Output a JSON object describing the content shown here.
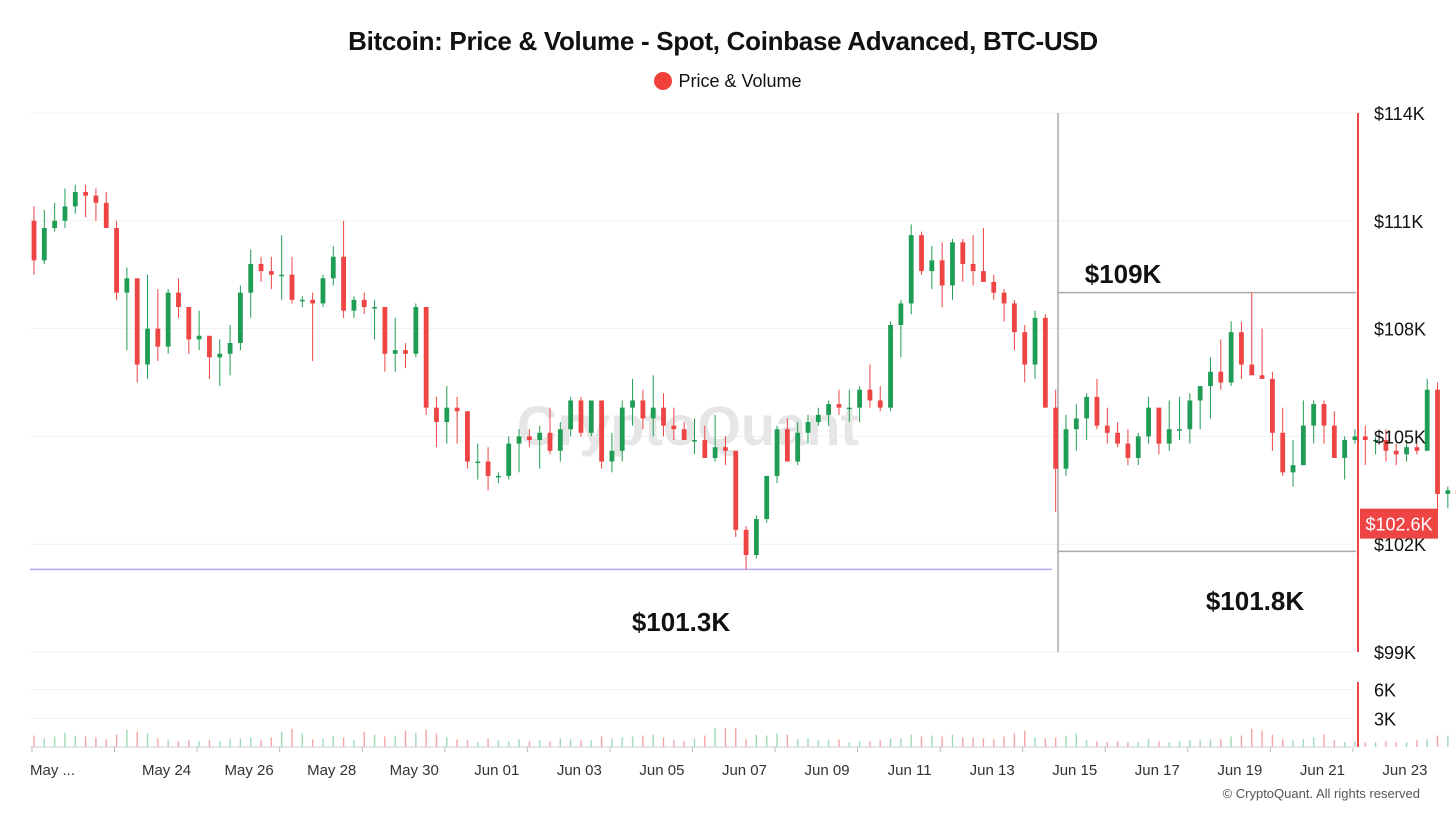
{
  "chart_data": {
    "title": "Bitcoin: Price & Volume - Spot, Coinbase Advanced, BTC-USD",
    "type": "candlestick",
    "legend": [
      {
        "label": "Price & Volume",
        "color": "#f0403a"
      }
    ],
    "legend_position": "top-center",
    "watermark": "CryptoQuant",
    "colors": {
      "up": "#1f9d55",
      "down": "#ef4444",
      "up_volume": "#9ed9b5",
      "down_volume": "#f4a3a3",
      "axis_accent": "#ef4444",
      "crosshair": "#aaaaaa",
      "support_line": "#b4a8f0"
    },
    "x_axis": {
      "ticks": [
        "May ...",
        "May 24",
        "May 26",
        "May 28",
        "May 30",
        "Jun 01",
        "Jun 03",
        "Jun 05",
        "Jun 07",
        "Jun 09",
        "Jun 11",
        "Jun 13",
        "Jun 15",
        "Jun 17",
        "Jun 19",
        "Jun 21",
        "Jun 23"
      ],
      "tick_hours": [
        0,
        48,
        96,
        144,
        192,
        240,
        288,
        336,
        384,
        432,
        480,
        528,
        576,
        624,
        672,
        720,
        768
      ]
    },
    "price_axis": {
      "ylim": [
        99000,
        114000
      ],
      "ticks": [
        99000,
        102000,
        105000,
        108000,
        111000,
        114000
      ],
      "tick_labels": [
        "$99K",
        "$102K",
        "$105K",
        "$108K",
        "$111K",
        "$114K"
      ],
      "current_price_label": "$102.6K",
      "current_price": 102600
    },
    "volume_axis": {
      "ylim": [
        0,
        6800
      ],
      "ticks": [
        3000,
        6000
      ],
      "tick_labels": [
        "3K",
        "6K"
      ]
    },
    "grid": true,
    "annotations": [
      {
        "text": "$109K",
        "value": 109000
      },
      {
        "text": "$101.3K",
        "value": 101300
      },
      {
        "text": "$101.8K",
        "value": 101800
      }
    ],
    "candle_interval_hours": 6,
    "candles": [
      [
        111000,
        111400,
        109500,
        109900
      ],
      [
        109900,
        111300,
        109800,
        110800
      ],
      [
        110800,
        111500,
        110700,
        111000
      ],
      [
        111000,
        111900,
        110800,
        111400
      ],
      [
        111400,
        112000,
        111200,
        111800
      ],
      [
        111800,
        112000,
        111100,
        111700
      ],
      [
        111700,
        111900,
        111000,
        111500
      ],
      [
        111500,
        111800,
        110800,
        110800
      ],
      [
        110800,
        111000,
        108800,
        109000
      ],
      [
        109000,
        109700,
        107400,
        109400
      ],
      [
        109400,
        109400,
        106500,
        107000
      ],
      [
        107000,
        109500,
        106600,
        108000
      ],
      [
        108000,
        109100,
        107100,
        107500
      ],
      [
        107500,
        109100,
        107300,
        109000
      ],
      [
        109000,
        109400,
        108300,
        108600
      ],
      [
        108600,
        108600,
        107300,
        107700
      ],
      [
        107700,
        108500,
        107400,
        107800
      ],
      [
        107800,
        107800,
        106600,
        107200
      ],
      [
        107200,
        107700,
        106400,
        107300
      ],
      [
        107300,
        108100,
        106700,
        107600
      ],
      [
        107600,
        109200,
        107400,
        109000
      ],
      [
        109000,
        110200,
        108300,
        109800
      ],
      [
        109800,
        110000,
        109300,
        109600
      ],
      [
        109600,
        110000,
        109100,
        109500
      ],
      [
        109500,
        110600,
        108800,
        109500
      ],
      [
        109500,
        110000,
        108700,
        108800
      ],
      [
        108800,
        108900,
        108600,
        108800
      ],
      [
        108800,
        109000,
        107100,
        108700
      ],
      [
        108700,
        109500,
        108600,
        109400
      ],
      [
        109400,
        110300,
        109200,
        110000
      ],
      [
        110000,
        111000,
        108300,
        108500
      ],
      [
        108500,
        108900,
        108300,
        108800
      ],
      [
        108800,
        109000,
        108400,
        108600
      ],
      [
        108600,
        108800,
        107700,
        108600
      ],
      [
        108600,
        108600,
        106800,
        107300
      ],
      [
        107300,
        108300,
        106800,
        107400
      ],
      [
        107400,
        107600,
        106900,
        107300
      ],
      [
        107300,
        108700,
        107200,
        108600
      ],
      [
        108600,
        108600,
        105600,
        105800
      ],
      [
        105800,
        106100,
        104700,
        105400
      ],
      [
        105400,
        106400,
        104800,
        105800
      ],
      [
        105800,
        106100,
        104800,
        105700
      ],
      [
        105700,
        105700,
        104100,
        104300
      ],
      [
        104300,
        104800,
        103800,
        104300
      ],
      [
        104300,
        104700,
        103500,
        103900
      ],
      [
        103900,
        104000,
        103700,
        103900
      ],
      [
        103900,
        105000,
        103800,
        104800
      ],
      [
        104800,
        105200,
        104000,
        105000
      ],
      [
        105000,
        105200,
        104700,
        104900
      ],
      [
        104900,
        105300,
        104100,
        105100
      ],
      [
        105100,
        105800,
        104500,
        104600
      ],
      [
        104600,
        105400,
        104300,
        105200
      ],
      [
        105200,
        106100,
        105000,
        106000
      ],
      [
        106000,
        106100,
        105000,
        105100
      ],
      [
        105100,
        106000,
        105000,
        106000
      ],
      [
        106000,
        106000,
        104100,
        104300
      ],
      [
        104300,
        105100,
        104000,
        104600
      ],
      [
        104600,
        106000,
        104300,
        105800
      ],
      [
        105800,
        106600,
        105300,
        106000
      ],
      [
        106000,
        106300,
        105200,
        105500
      ],
      [
        105500,
        106700,
        105000,
        105800
      ],
      [
        105800,
        106200,
        105000,
        105300
      ],
      [
        105300,
        105800,
        104900,
        105200
      ],
      [
        105200,
        105400,
        104900,
        104900
      ],
      [
        104900,
        105500,
        104500,
        104900
      ],
      [
        104900,
        105300,
        104400,
        104400
      ],
      [
        104400,
        105600,
        104300,
        104700
      ],
      [
        104700,
        105000,
        104200,
        104600
      ],
      [
        104600,
        104600,
        102200,
        102400
      ],
      [
        102400,
        102500,
        101300,
        101700
      ],
      [
        101700,
        102800,
        101600,
        102700
      ],
      [
        102700,
        103900,
        102600,
        103900
      ],
      [
        103900,
        105300,
        103700,
        105200
      ],
      [
        105200,
        105500,
        104300,
        104300
      ],
      [
        104300,
        105400,
        104200,
        105100
      ],
      [
        105100,
        105600,
        104800,
        105400
      ],
      [
        105400,
        105800,
        105300,
        105600
      ],
      [
        105600,
        106000,
        105300,
        105900
      ],
      [
        105900,
        106300,
        105600,
        105800
      ],
      [
        105800,
        106300,
        105400,
        105800
      ],
      [
        105800,
        106400,
        105400,
        106300
      ],
      [
        106300,
        107000,
        105800,
        106000
      ],
      [
        106000,
        106400,
        105700,
        105800
      ],
      [
        105800,
        108200,
        105700,
        108100
      ],
      [
        108100,
        108800,
        107200,
        108700
      ],
      [
        108700,
        110900,
        108400,
        110600
      ],
      [
        110600,
        110700,
        109500,
        109600
      ],
      [
        109600,
        110300,
        109100,
        109900
      ],
      [
        109900,
        110400,
        108600,
        109200
      ],
      [
        109200,
        110500,
        108800,
        110400
      ],
      [
        110400,
        110500,
        109300,
        109800
      ],
      [
        109800,
        110600,
        109200,
        109600
      ],
      [
        109600,
        110800,
        109300,
        109300
      ],
      [
        109300,
        109500,
        108800,
        109000
      ],
      [
        109000,
        109100,
        108200,
        108700
      ],
      [
        108700,
        108800,
        107400,
        107900
      ],
      [
        107900,
        108100,
        106500,
        107000
      ],
      [
        107000,
        108500,
        106600,
        108300
      ],
      [
        108300,
        108400,
        105800,
        105800
      ],
      [
        105800,
        106300,
        102900,
        104100
      ],
      [
        104100,
        105600,
        103900,
        105200
      ],
      [
        105200,
        105900,
        104600,
        105500
      ],
      [
        105500,
        106200,
        104900,
        106100
      ],
      [
        106100,
        106600,
        105200,
        105300
      ],
      [
        105300,
        105800,
        104800,
        105100
      ],
      [
        105100,
        105400,
        104700,
        104800
      ],
      [
        104800,
        105200,
        104200,
        104400
      ],
      [
        104400,
        105100,
        104200,
        105000
      ],
      [
        105000,
        106100,
        104800,
        105800
      ],
      [
        105800,
        105800,
        104500,
        104800
      ],
      [
        104800,
        106000,
        104600,
        105200
      ],
      [
        105200,
        106100,
        104900,
        105200
      ],
      [
        105200,
        106200,
        104800,
        106000
      ],
      [
        106000,
        106300,
        105200,
        106400
      ],
      [
        106400,
        107200,
        105500,
        106800
      ],
      [
        106800,
        107700,
        106300,
        106500
      ],
      [
        106500,
        108200,
        106400,
        107900
      ],
      [
        107900,
        108200,
        106600,
        107000
      ],
      [
        107000,
        109000,
        106800,
        106700
      ],
      [
        106700,
        108000,
        106600,
        106600
      ],
      [
        106600,
        106800,
        104600,
        105100
      ],
      [
        105100,
        105800,
        103900,
        104000
      ],
      [
        104000,
        104900,
        103600,
        104200
      ],
      [
        104200,
        106000,
        104200,
        105300
      ],
      [
        105300,
        106000,
        104800,
        105900
      ],
      [
        105900,
        106000,
        104800,
        105300
      ],
      [
        105300,
        105700,
        104500,
        104400
      ],
      [
        104400,
        105000,
        103800,
        104900
      ],
      [
        104900,
        105200,
        104800,
        105000
      ],
      [
        105000,
        105300,
        104200,
        104900
      ],
      [
        104900,
        105000,
        104500,
        104900
      ],
      [
        104900,
        105200,
        104300,
        104600
      ],
      [
        104600,
        104800,
        104200,
        104500
      ],
      [
        104500,
        104900,
        104300,
        104700
      ],
      [
        104700,
        104800,
        104500,
        104600
      ],
      [
        104600,
        106600,
        104600,
        106300
      ],
      [
        106300,
        106500,
        102800,
        103400
      ],
      [
        103400,
        103600,
        103000,
        103500
      ],
      [
        103500,
        103800,
        103200,
        103400
      ],
      [
        103400,
        103800,
        103100,
        103600
      ],
      [
        103600,
        103800,
        103300,
        103400
      ],
      [
        103400,
        104100,
        103300,
        103900
      ],
      [
        103900,
        104000,
        103100,
        103100
      ],
      [
        103100,
        103200,
        101800,
        102000
      ],
      [
        102000,
        103400,
        101900,
        102600
      ],
      [
        102600,
        103500,
        102400,
        102900
      ],
      [
        102900,
        103100,
        102300,
        102600
      ]
    ],
    "volume": [
      1200,
      900,
      1100,
      1500,
      1200,
      1100,
      1000,
      800,
      1300,
      1800,
      1600,
      1400,
      900,
      700,
      600,
      700,
      600,
      700,
      600,
      900,
      900,
      1000,
      700,
      1000,
      1600,
      1900,
      1400,
      800,
      900,
      1100,
      1000,
      700,
      1600,
      1300,
      1100,
      1200,
      1700,
      1500,
      1800,
      1400,
      1000,
      800,
      700,
      500,
      900,
      700,
      600,
      800,
      600,
      700,
      600,
      900,
      800,
      700,
      700,
      1100,
      900,
      1000,
      1100,
      1200,
      1300,
      1000,
      700,
      600,
      900,
      1200,
      2000,
      2000,
      2000,
      800,
      1300,
      1200,
      1400,
      1300,
      800,
      900,
      700,
      700,
      800,
      500,
      600,
      600,
      700,
      900,
      900,
      1300,
      1100,
      1200,
      1100,
      1300,
      1000,
      1000,
      900,
      800,
      1100,
      1400,
      1700,
      1000,
      900,
      1000,
      1200,
      1400,
      700,
      600,
      500,
      600,
      500,
      500,
      800,
      600,
      500,
      600,
      700,
      700,
      800,
      800,
      1100,
      1200,
      1900,
      1700,
      1300,
      800,
      700,
      800,
      1000,
      1300,
      700,
      500,
      600,
      500,
      500,
      600,
      500,
      500,
      700,
      800,
      1200,
      1200,
      700,
      800,
      700,
      600,
      800,
      1300,
      1100,
      700,
      500
    ]
  },
  "copyright": "© CryptoQuant. All rights reserved"
}
